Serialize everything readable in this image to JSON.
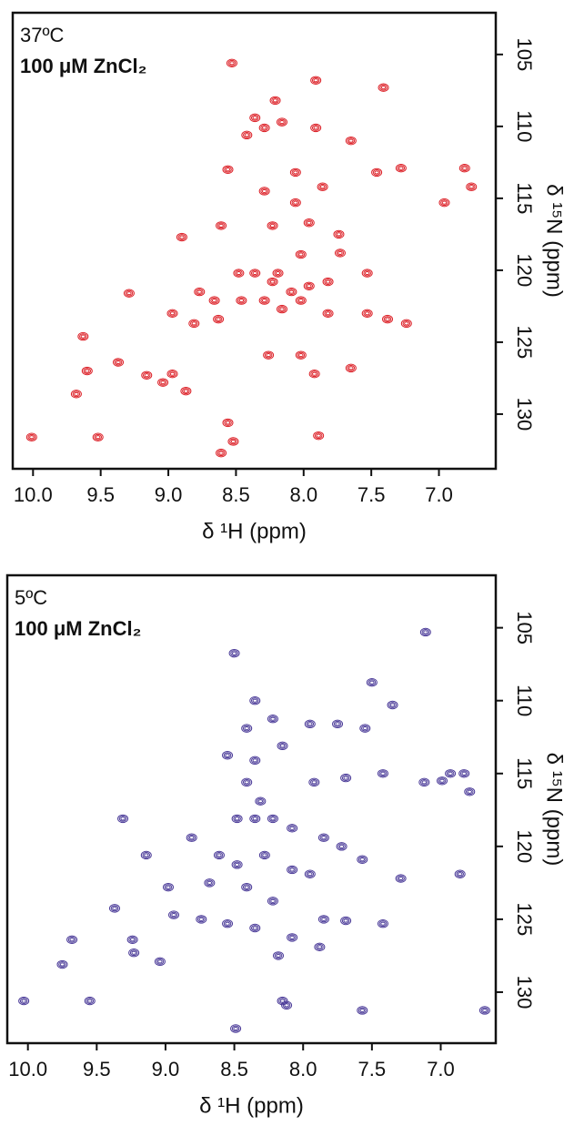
{
  "chart_data": [
    {
      "type": "scatter",
      "title": "37ºC",
      "subtitle": "100 μM ZnCl₂",
      "x_label": "δ ¹H (ppm)",
      "y_label": "δ ¹⁵N (ppm)",
      "color": "#dc1f26",
      "xlim": [
        10.15,
        6.58
      ],
      "ylim": [
        133.8,
        102.1
      ],
      "xticks": [
        {
          "value": 10,
          "label": "10.0"
        },
        9.5,
        {
          "value": 9,
          "label": "9.0"
        },
        8.5,
        {
          "value": 8,
          "label": "8.0"
        },
        7.5,
        {
          "value": 7,
          "label": "7.0"
        }
      ],
      "yticks": [
        105,
        110,
        115,
        120,
        125,
        130
      ],
      "x": [
        8.53,
        7.91,
        7.41,
        8.21,
        8.42,
        8.29,
        7.91,
        7.65,
        8.56,
        7.46,
        7.28,
        6.81,
        6.76,
        6.96,
        8.06,
        7.86,
        8.06,
        8.9,
        8.61,
        8.23,
        7.96,
        7.74,
        7.73,
        7.53,
        8.36,
        8.19,
        8.02,
        8.77,
        9.29,
        8.66,
        8.46,
        8.97,
        8.81,
        8.63,
        8.02,
        7.82,
        7.53,
        7.38,
        7.24,
        9.63,
        9.37,
        9.16,
        8.97,
        8.87,
        9.6,
        9.68,
        9.04,
        8.26,
        8.02,
        7.92,
        7.65,
        8.56,
        8.52,
        8.61,
        7.89,
        10.01,
        9.52,
        8.29,
        8.48,
        8.23,
        8.09,
        7.96,
        7.82,
        8.29,
        8.16,
        8.36,
        8.16
      ],
      "values": [
        105.6,
        106.8,
        107.3,
        108.2,
        110.6,
        110.1,
        110.1,
        111.0,
        113.0,
        113.2,
        112.9,
        112.9,
        114.2,
        115.3,
        113.2,
        114.2,
        115.3,
        117.7,
        116.9,
        116.9,
        116.7,
        117.5,
        118.8,
        120.2,
        120.2,
        120.2,
        118.9,
        121.5,
        121.6,
        122.1,
        122.1,
        123.0,
        123.7,
        123.4,
        122.1,
        123.0,
        123.0,
        123.4,
        123.7,
        124.6,
        126.4,
        127.3,
        127.2,
        128.4,
        127.0,
        128.6,
        127.8,
        125.9,
        125.9,
        127.2,
        126.8,
        130.6,
        131.9,
        132.7,
        131.5,
        131.6,
        131.6,
        114.5,
        120.2,
        120.8,
        121.5,
        121.1,
        120.8,
        122.1,
        122.7,
        109.4,
        109.7
      ]
    },
    {
      "type": "scatter",
      "title": "5ºC",
      "subtitle": "100 μM ZnCl₂",
      "x_label": "δ ¹H (ppm)",
      "y_label": "δ ¹⁵N (ppm)",
      "color": "#4a3a98",
      "xlim": [
        10.15,
        6.6
      ],
      "ylim": [
        133.5,
        101.4
      ],
      "xticks": [
        {
          "value": 10,
          "label": "10.0"
        },
        9.5,
        {
          "value": 9,
          "label": "9.0"
        },
        8.5,
        {
          "value": 8,
          "label": "8.0"
        },
        7.5,
        {
          "value": 7,
          "label": "7.0"
        }
      ],
      "yticks": [
        105,
        110,
        115,
        120,
        125,
        130
      ],
      "x": [
        7.11,
        8.5,
        7.5,
        7.35,
        8.35,
        8.41,
        8.22,
        7.95,
        7.75,
        7.55,
        8.55,
        8.35,
        8.15,
        7.92,
        7.69,
        7.42,
        7.12,
        6.99,
        6.83,
        6.93,
        6.79,
        8.41,
        8.31,
        8.48,
        8.35,
        8.22,
        8.08,
        9.31,
        7.85,
        7.72,
        7.57,
        9.14,
        8.81,
        8.61,
        8.48,
        8.28,
        8.08,
        7.95,
        8.68,
        8.41,
        8.22,
        7.29,
        8.98,
        6.86,
        8.94,
        8.74,
        8.55,
        8.35,
        8.08,
        8.18,
        7.88,
        7.85,
        7.69,
        7.42,
        9.24,
        9.37,
        9.68,
        9.75,
        9.04,
        9.23,
        8.49,
        8.15,
        8.12,
        10.03,
        9.55,
        7.57,
        6.68
      ],
      "values": [
        105.3,
        106.75,
        108.75,
        110.3,
        110.0,
        111.9,
        111.25,
        111.6,
        111.6,
        111.9,
        113.75,
        114.1,
        113.1,
        115.6,
        115.3,
        115.0,
        115.6,
        115.5,
        115.0,
        115.0,
        116.25,
        115.6,
        116.9,
        118.1,
        118.1,
        118.1,
        118.75,
        118.1,
        119.4,
        120.0,
        120.9,
        120.6,
        119.4,
        120.6,
        121.25,
        120.6,
        121.6,
        121.9,
        122.5,
        122.8,
        123.75,
        122.2,
        122.8,
        121.9,
        124.7,
        125.0,
        125.3,
        125.6,
        126.25,
        127.5,
        126.9,
        125.0,
        125.1,
        125.3,
        126.4,
        124.25,
        126.4,
        128.1,
        127.9,
        127.3,
        132.5,
        130.6,
        130.9,
        130.6,
        130.6,
        131.25,
        131.25
      ]
    }
  ]
}
